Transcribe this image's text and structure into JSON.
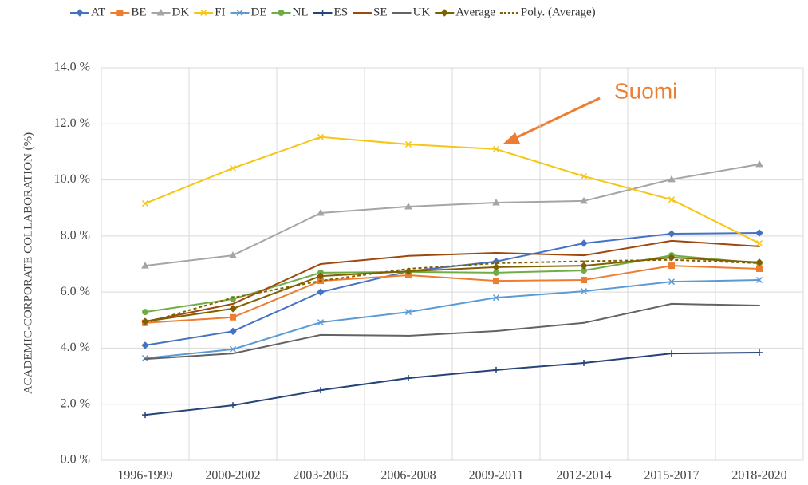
{
  "chart_data": {
    "type": "line",
    "y_label": "ACADEMIC-CORPORATE COLLABORATION (%)",
    "annotation": "Suomi",
    "categories": [
      "1996-1999",
      "2000-2002",
      "2003-2005",
      "2006-2008",
      "2009-2011",
      "2012-2014",
      "2015-2017",
      "2018-2020"
    ],
    "ylim": [
      0,
      14
    ],
    "yticks": [
      {
        "value": 0,
        "label": "0.0 %"
      },
      {
        "value": 2,
        "label": "2.0 %"
      },
      {
        "value": 4,
        "label": "4.0 %"
      },
      {
        "value": 6,
        "label": "6.0 %"
      },
      {
        "value": 8,
        "label": "8.0 %"
      },
      {
        "value": 10,
        "label": "10.0 %"
      },
      {
        "value": 12,
        "label": "12.0 %"
      },
      {
        "value": 14,
        "label": "14.0 %"
      }
    ],
    "grid": true,
    "legend": "top",
    "series": [
      {
        "name": "AT",
        "color": "#4472c4",
        "marker": "diamond",
        "values": [
          4.1,
          4.6,
          6.0,
          6.74,
          7.09,
          7.74,
          8.08,
          8.11
        ]
      },
      {
        "name": "BE",
        "color": "#ed7d31",
        "marker": "square",
        "values": [
          4.9,
          5.1,
          6.4,
          6.6,
          6.4,
          6.43,
          6.94,
          6.83
        ]
      },
      {
        "name": "DK",
        "color": "#a5a5a5",
        "marker": "triangle",
        "values": [
          6.94,
          7.31,
          8.82,
          9.05,
          9.19,
          9.25,
          10.02,
          10.56
        ]
      },
      {
        "name": "FI",
        "color": "#f5c518",
        "marker": "cross",
        "values": [
          9.16,
          10.42,
          11.53,
          11.27,
          11.1,
          10.13,
          9.3,
          7.74
        ]
      },
      {
        "name": "DE",
        "color": "#5b9bd5",
        "marker": "cross",
        "values": [
          3.64,
          3.96,
          4.92,
          5.29,
          5.8,
          6.03,
          6.37,
          6.43
        ]
      },
      {
        "name": "NL",
        "color": "#70ad47",
        "marker": "circle",
        "values": [
          5.29,
          5.75,
          6.69,
          6.72,
          6.69,
          6.77,
          7.31,
          7.03
        ]
      },
      {
        "name": "ES",
        "color": "#264478",
        "marker": "plus",
        "values": [
          1.62,
          1.96,
          2.5,
          2.93,
          3.22,
          3.47,
          3.81,
          3.84
        ]
      },
      {
        "name": "SE",
        "color": "#9e480e",
        "marker": "none",
        "values": [
          4.95,
          5.58,
          7.0,
          7.29,
          7.4,
          7.31,
          7.83,
          7.63
        ]
      },
      {
        "name": "UK",
        "color": "#636363",
        "marker": "none",
        "values": [
          3.61,
          3.81,
          4.47,
          4.44,
          4.61,
          4.9,
          5.58,
          5.52
        ]
      },
      {
        "name": "Average",
        "color": "#7f6000",
        "marker": "diamond",
        "values": [
          4.95,
          5.41,
          6.57,
          6.74,
          6.89,
          6.94,
          7.23,
          7.06
        ]
      },
      {
        "name": "Poly. (Average)",
        "color": "#7f6000",
        "marker": "none",
        "dashed": true,
        "values": [
          4.9,
          5.8,
          6.4,
          6.83,
          7.03,
          7.1,
          7.15,
          7.03
        ]
      }
    ]
  }
}
